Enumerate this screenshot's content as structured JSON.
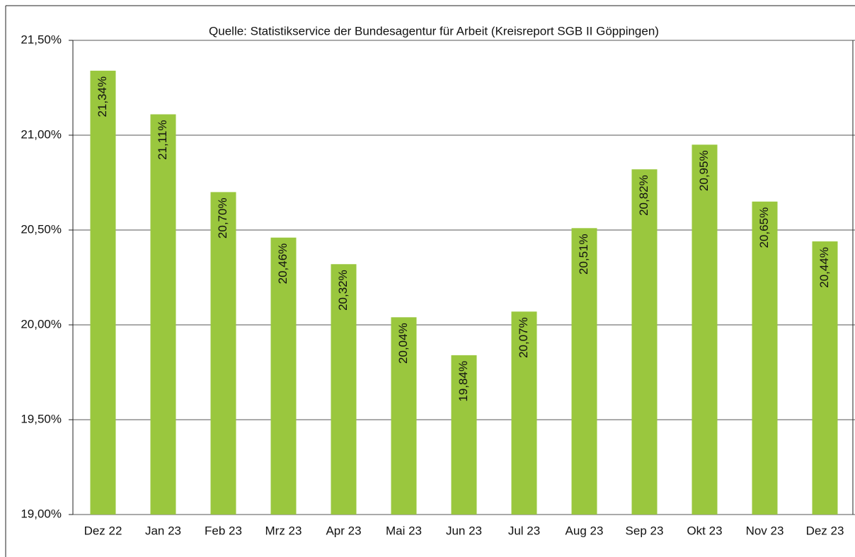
{
  "chart_data": {
    "type": "bar",
    "title": "Quelle: Statistikservice der Bundesagentur für Arbeit (Kreisreport SGB II Göppingen)",
    "categories": [
      "Dez 22",
      "Jan 23",
      "Feb 23",
      "Mrz 23",
      "Apr 23",
      "Mai 23",
      "Jun 23",
      "Jul 23",
      "Aug 23",
      "Sep 23",
      "Okt 23",
      "Nov 23",
      "Dez 23"
    ],
    "values": [
      21.34,
      21.11,
      20.7,
      20.46,
      20.32,
      20.04,
      19.84,
      20.07,
      20.51,
      20.82,
      20.95,
      20.65,
      20.44
    ],
    "value_labels": [
      "21,34%",
      "21,11%",
      "20,70%",
      "20,46%",
      "20,32%",
      "20,04%",
      "19,84%",
      "20,07%",
      "20,51%",
      "20,82%",
      "20,95%",
      "20,65%",
      "20,44%"
    ],
    "color": "#9ac73e",
    "ylim": [
      19.0,
      21.5
    ],
    "yticks": [
      {
        "value": 19.0,
        "label": "19,00%"
      },
      {
        "value": 19.5,
        "label": "19,50%"
      },
      {
        "value": 20.0,
        "label": "20,00%"
      },
      {
        "value": 20.5,
        "label": "20,50%"
      },
      {
        "value": 21.0,
        "label": "21,00%"
      },
      {
        "value": 21.5,
        "label": "21,50%"
      }
    ],
    "grid": true
  }
}
